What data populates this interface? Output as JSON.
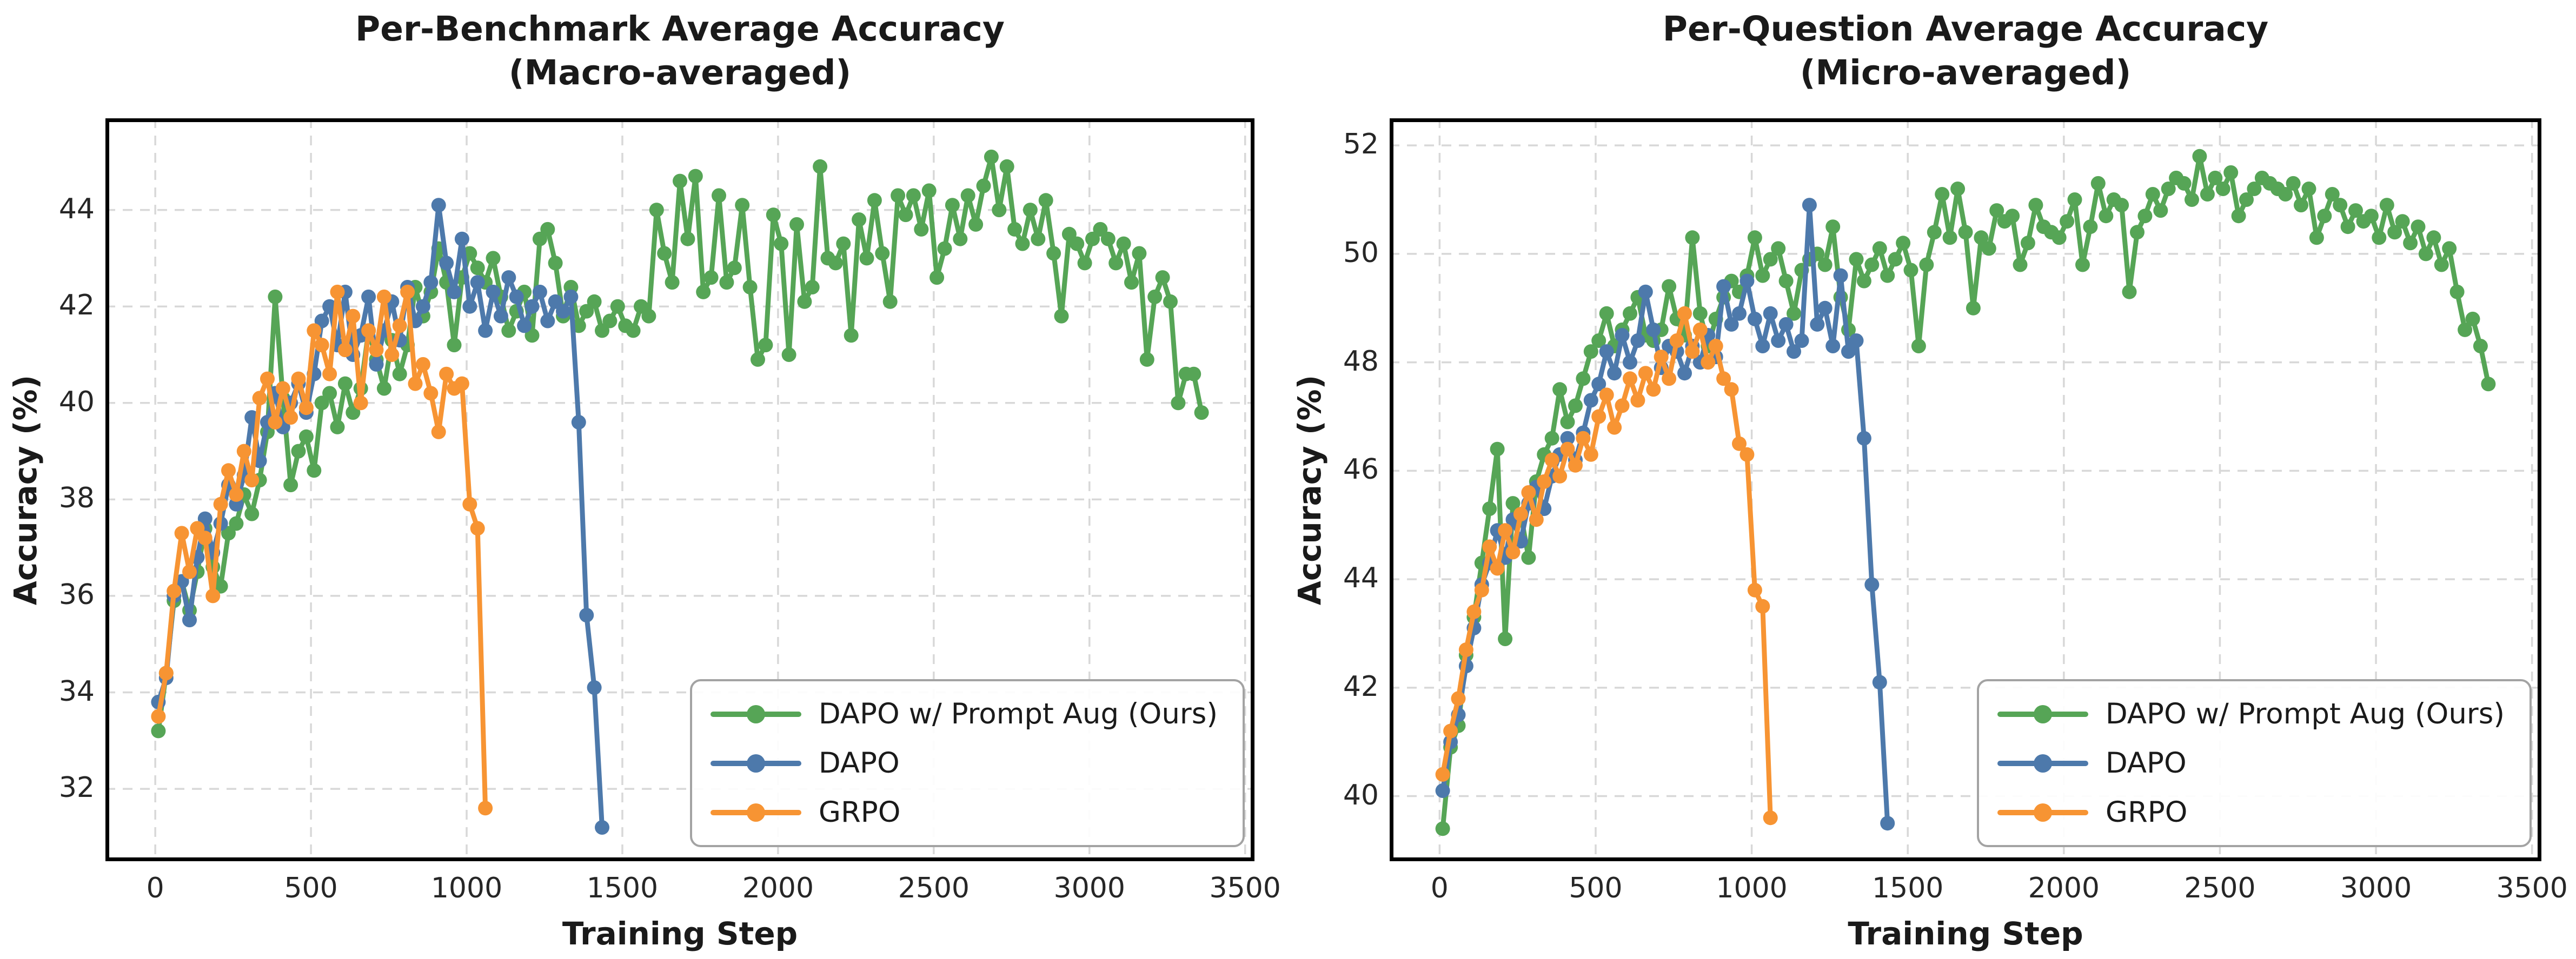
{
  "figure": {
    "background": "#ffffff",
    "grid_color": "#d8d8d8",
    "spine_color": "#000000",
    "tick_color": "#262626",
    "text_color": "#1a1a1a",
    "legend_border": "#a3a3a3"
  },
  "chart_data": [
    {
      "type": "line",
      "title_line1": "Per-Benchmark Average Accuracy",
      "title_line2": "(Macro-averaged)",
      "xlabel": "Training Step",
      "ylabel": "Accuracy (%)",
      "xlim": [
        -160,
        3530
      ],
      "ylim": [
        30.5,
        45.9
      ],
      "xticks": [
        0,
        500,
        1000,
        1500,
        2000,
        2500,
        3000,
        3500
      ],
      "yticks": [
        32,
        34,
        36,
        38,
        40,
        42,
        44
      ],
      "grid": true,
      "legend_position": "lower right",
      "series": [
        {
          "name": "DAPO w/ Prompt Aug (Ours)",
          "color": "#56a556",
          "x": [
            10,
            35,
            60,
            85,
            110,
            135,
            160,
            185,
            210,
            235,
            260,
            285,
            310,
            335,
            360,
            385,
            410,
            435,
            460,
            485,
            510,
            535,
            560,
            585,
            610,
            635,
            660,
            685,
            710,
            735,
            760,
            785,
            810,
            835,
            860,
            885,
            910,
            935,
            960,
            985,
            1010,
            1035,
            1060,
            1085,
            1110,
            1135,
            1160,
            1185,
            1210,
            1235,
            1260,
            1285,
            1310,
            1335,
            1360,
            1385,
            1410,
            1435,
            1460,
            1485,
            1510,
            1535,
            1560,
            1585,
            1610,
            1635,
            1660,
            1685,
            1710,
            1735,
            1760,
            1785,
            1810,
            1835,
            1860,
            1885,
            1910,
            1935,
            1960,
            1985,
            2010,
            2035,
            2060,
            2085,
            2110,
            2135,
            2160,
            2185,
            2210,
            2235,
            2260,
            2285,
            2310,
            2335,
            2360,
            2385,
            2410,
            2435,
            2460,
            2485,
            2510,
            2535,
            2560,
            2585,
            2610,
            2635,
            2660,
            2685,
            2710,
            2735,
            2760,
            2785,
            2810,
            2835,
            2860,
            2885,
            2910,
            2935,
            2960,
            2985,
            3010,
            3035,
            3060,
            3085,
            3110,
            3135,
            3160,
            3185,
            3210,
            3235,
            3260,
            3285,
            3310,
            3335,
            3360
          ],
          "y": [
            33.2,
            34.4,
            35.9,
            36.3,
            35.7,
            36.5,
            37.4,
            36.6,
            36.2,
            37.3,
            37.5,
            38.1,
            37.7,
            38.4,
            39.4,
            42.2,
            40.1,
            38.3,
            39.0,
            39.3,
            38.6,
            40.0,
            40.2,
            39.5,
            40.4,
            39.8,
            40.3,
            41.5,
            40.9,
            40.3,
            41.3,
            40.6,
            41.2,
            42.4,
            41.8,
            42.3,
            43.2,
            42.5,
            41.2,
            42.6,
            43.1,
            42.8,
            42.5,
            43.0,
            42.2,
            41.5,
            41.9,
            42.3,
            41.4,
            43.4,
            43.6,
            42.9,
            41.8,
            42.4,
            41.6,
            41.9,
            42.1,
            41.5,
            41.7,
            42.0,
            41.6,
            41.5,
            42.0,
            41.8,
            44.0,
            43.1,
            42.5,
            44.6,
            43.4,
            44.7,
            42.3,
            42.6,
            44.3,
            42.5,
            42.8,
            44.1,
            42.4,
            40.9,
            41.2,
            43.9,
            43.3,
            41.0,
            43.7,
            42.1,
            42.4,
            44.9,
            43.0,
            42.9,
            43.3,
            41.4,
            43.8,
            43.0,
            44.2,
            43.1,
            42.1,
            44.3,
            43.9,
            44.3,
            43.6,
            44.4,
            42.6,
            43.2,
            44.1,
            43.4,
            44.3,
            43.7,
            44.5,
            45.1,
            44.0,
            44.9,
            43.6,
            43.3,
            44.0,
            43.4,
            44.2,
            43.1,
            41.8,
            43.5,
            43.3,
            42.9,
            43.4,
            43.6,
            43.4,
            42.9,
            43.3,
            42.5,
            43.1,
            40.9,
            42.2,
            42.6,
            42.1,
            40.0,
            40.6,
            40.6,
            39.8
          ]
        },
        {
          "name": "DAPO",
          "color": "#4d79ab",
          "x": [
            10,
            35,
            60,
            85,
            110,
            135,
            160,
            185,
            210,
            235,
            260,
            285,
            310,
            335,
            360,
            385,
            410,
            435,
            460,
            485,
            510,
            535,
            560,
            585,
            610,
            635,
            660,
            685,
            710,
            735,
            760,
            785,
            810,
            835,
            860,
            885,
            910,
            935,
            960,
            985,
            1010,
            1035,
            1060,
            1085,
            1110,
            1135,
            1160,
            1185,
            1210,
            1235,
            1260,
            1285,
            1310,
            1335,
            1360,
            1385,
            1410,
            1435
          ],
          "y": [
            33.8,
            34.3,
            36.0,
            36.3,
            35.5,
            36.8,
            37.6,
            36.9,
            37.5,
            38.3,
            37.9,
            38.5,
            39.7,
            38.8,
            39.6,
            40.2,
            39.5,
            40.0,
            40.4,
            39.8,
            40.6,
            41.7,
            42.0,
            41.2,
            42.3,
            41.0,
            41.4,
            42.2,
            40.8,
            41.5,
            42.1,
            41.3,
            42.4,
            41.7,
            42.0,
            42.5,
            44.1,
            42.9,
            42.3,
            43.4,
            42.0,
            42.5,
            41.5,
            42.3,
            41.8,
            42.6,
            42.2,
            41.6,
            42.0,
            42.3,
            41.7,
            42.1,
            41.9,
            42.2,
            39.6,
            35.6,
            34.1,
            31.2
          ]
        },
        {
          "name": "GRPO",
          "color": "#f79433",
          "x": [
            10,
            35,
            60,
            85,
            110,
            135,
            160,
            185,
            210,
            235,
            260,
            285,
            310,
            335,
            360,
            385,
            410,
            435,
            460,
            485,
            510,
            535,
            560,
            585,
            610,
            635,
            660,
            685,
            710,
            735,
            760,
            785,
            810,
            835,
            860,
            885,
            910,
            935,
            960,
            985,
            1010,
            1035,
            1060
          ],
          "y": [
            33.5,
            34.4,
            36.1,
            37.3,
            36.5,
            37.4,
            37.2,
            36.0,
            37.9,
            38.6,
            38.1,
            39.0,
            38.4,
            40.1,
            40.5,
            39.6,
            40.3,
            39.7,
            40.5,
            39.9,
            41.5,
            41.2,
            40.6,
            42.3,
            41.1,
            41.8,
            40.0,
            41.5,
            41.1,
            42.2,
            41.0,
            41.6,
            42.3,
            40.4,
            40.8,
            40.2,
            39.4,
            40.6,
            40.3,
            40.4,
            37.9,
            37.4,
            31.6
          ]
        }
      ]
    },
    {
      "type": "line",
      "title_line1": "Per-Question Average Accuracy",
      "title_line2": "(Micro-averaged)",
      "xlabel": "Training Step",
      "ylabel": "Accuracy (%)",
      "xlim": [
        -160,
        3530
      ],
      "ylim": [
        38.8,
        52.5
      ],
      "xticks": [
        0,
        500,
        1000,
        1500,
        2000,
        2500,
        3000,
        3500
      ],
      "yticks": [
        40,
        42,
        44,
        46,
        48,
        50,
        52
      ],
      "grid": true,
      "legend_position": "lower right",
      "series": [
        {
          "name": "DAPO w/ Prompt Aug (Ours)",
          "color": "#56a556",
          "x": [
            10,
            35,
            60,
            85,
            110,
            135,
            160,
            185,
            210,
            235,
            260,
            285,
            310,
            335,
            360,
            385,
            410,
            435,
            460,
            485,
            510,
            535,
            560,
            585,
            610,
            635,
            660,
            685,
            710,
            735,
            760,
            785,
            810,
            835,
            860,
            885,
            910,
            935,
            960,
            985,
            1010,
            1035,
            1060,
            1085,
            1110,
            1135,
            1160,
            1185,
            1210,
            1235,
            1260,
            1285,
            1310,
            1335,
            1360,
            1385,
            1410,
            1435,
            1460,
            1485,
            1510,
            1535,
            1560,
            1585,
            1610,
            1635,
            1660,
            1685,
            1710,
            1735,
            1760,
            1785,
            1810,
            1835,
            1860,
            1885,
            1910,
            1935,
            1960,
            1985,
            2010,
            2035,
            2060,
            2085,
            2110,
            2135,
            2160,
            2185,
            2210,
            2235,
            2260,
            2285,
            2310,
            2335,
            2360,
            2385,
            2410,
            2435,
            2460,
            2485,
            2510,
            2535,
            2560,
            2585,
            2610,
            2635,
            2660,
            2685,
            2710,
            2735,
            2760,
            2785,
            2810,
            2835,
            2860,
            2885,
            2910,
            2935,
            2960,
            2985,
            3010,
            3035,
            3060,
            3085,
            3110,
            3135,
            3160,
            3185,
            3210,
            3235,
            3260,
            3285,
            3310,
            3335,
            3360
          ],
          "y": [
            39.4,
            40.9,
            41.3,
            42.6,
            43.3,
            44.3,
            45.3,
            46.4,
            42.9,
            45.4,
            45.2,
            44.4,
            45.8,
            46.3,
            46.6,
            47.5,
            46.9,
            47.2,
            47.7,
            48.2,
            48.4,
            48.9,
            48.3,
            48.6,
            48.9,
            49.2,
            48.5,
            48.4,
            48.6,
            49.4,
            48.8,
            48.5,
            50.3,
            48.9,
            48.3,
            48.8,
            49.2,
            49.5,
            49.3,
            49.6,
            50.3,
            49.6,
            49.9,
            50.1,
            49.5,
            48.9,
            49.7,
            49.9,
            50.0,
            49.8,
            50.5,
            49.2,
            48.6,
            49.9,
            49.5,
            49.8,
            50.1,
            49.6,
            49.9,
            50.2,
            49.7,
            48.3,
            49.8,
            50.4,
            51.1,
            50.3,
            51.2,
            50.4,
            49.0,
            50.3,
            50.1,
            50.8,
            50.6,
            50.7,
            49.8,
            50.2,
            50.9,
            50.5,
            50.4,
            50.3,
            50.6,
            51.0,
            49.8,
            50.5,
            51.3,
            50.7,
            51.0,
            50.9,
            49.3,
            50.4,
            50.7,
            51.1,
            50.8,
            51.2,
            51.4,
            51.3,
            51.0,
            51.8,
            51.1,
            51.4,
            51.2,
            51.5,
            50.7,
            51.0,
            51.2,
            51.4,
            51.3,
            51.2,
            51.1,
            51.3,
            50.9,
            51.2,
            50.3,
            50.7,
            51.1,
            50.9,
            50.5,
            50.8,
            50.6,
            50.7,
            50.3,
            50.9,
            50.4,
            50.6,
            50.2,
            50.5,
            50.0,
            50.3,
            49.8,
            50.1,
            49.3,
            48.6,
            48.8,
            48.3,
            47.6
          ]
        },
        {
          "name": "DAPO",
          "color": "#4d79ab",
          "x": [
            10,
            35,
            60,
            85,
            110,
            135,
            160,
            185,
            210,
            235,
            260,
            285,
            310,
            335,
            360,
            385,
            410,
            435,
            460,
            485,
            510,
            535,
            560,
            585,
            610,
            635,
            660,
            685,
            710,
            735,
            760,
            785,
            810,
            835,
            860,
            885,
            910,
            935,
            960,
            985,
            1010,
            1035,
            1060,
            1085,
            1110,
            1135,
            1160,
            1185,
            1210,
            1235,
            1260,
            1285,
            1310,
            1335,
            1360,
            1385,
            1410,
            1435
          ],
          "y": [
            40.1,
            41.0,
            41.5,
            42.4,
            43.1,
            43.9,
            44.3,
            44.9,
            44.4,
            45.1,
            44.7,
            45.4,
            45.7,
            45.3,
            45.9,
            46.3,
            46.6,
            46.2,
            46.7,
            47.3,
            47.6,
            48.2,
            47.8,
            48.5,
            48.0,
            48.4,
            49.3,
            48.6,
            47.9,
            48.3,
            48.2,
            47.8,
            48.3,
            48.0,
            48.5,
            48.1,
            49.4,
            48.7,
            48.9,
            49.5,
            48.8,
            48.3,
            48.9,
            48.4,
            48.7,
            48.2,
            48.4,
            50.9,
            48.7,
            49.0,
            48.3,
            49.6,
            48.2,
            48.4,
            46.6,
            43.9,
            42.1,
            39.5
          ]
        },
        {
          "name": "GRPO",
          "color": "#f79433",
          "x": [
            10,
            35,
            60,
            85,
            110,
            135,
            160,
            185,
            210,
            235,
            260,
            285,
            310,
            335,
            360,
            385,
            410,
            435,
            460,
            485,
            510,
            535,
            560,
            585,
            610,
            635,
            660,
            685,
            710,
            735,
            760,
            785,
            810,
            835,
            860,
            885,
            910,
            935,
            960,
            985,
            1010,
            1035,
            1060
          ],
          "y": [
            40.4,
            41.2,
            41.8,
            42.7,
            43.4,
            43.8,
            44.6,
            44.2,
            44.9,
            44.5,
            45.2,
            45.6,
            45.1,
            45.8,
            46.2,
            45.9,
            46.4,
            46.1,
            46.6,
            46.3,
            47.0,
            47.4,
            46.8,
            47.2,
            47.7,
            47.3,
            47.8,
            47.5,
            48.1,
            47.7,
            48.4,
            48.9,
            48.2,
            48.6,
            48.0,
            48.3,
            47.7,
            47.5,
            46.5,
            46.3,
            43.8,
            43.5,
            39.6
          ]
        }
      ]
    }
  ]
}
